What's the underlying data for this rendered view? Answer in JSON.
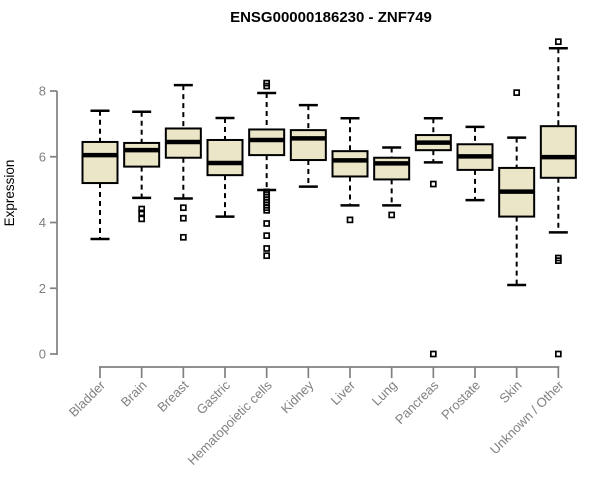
{
  "title": "ENSG00000186230 - ZNF749",
  "chart_data": {
    "type": "boxplot",
    "title": "ENSG00000186230 - ZNF749",
    "ylabel": "Expression",
    "xlabel": "",
    "ylim": [
      0,
      8
    ],
    "yticks": [
      0,
      2,
      4,
      6,
      8
    ],
    "grid": false,
    "legend": "none",
    "categories": [
      "Bladder",
      "Brain",
      "Breast",
      "Gastric",
      "Hematopoietic cells",
      "Kidney",
      "Liver",
      "Lung",
      "Pancreas",
      "Prostate",
      "Skin",
      "Unknown / Other"
    ],
    "series": [
      {
        "category": "Bladder",
        "low": 3.5,
        "q1": 5.2,
        "median": 6.05,
        "q3": 6.45,
        "high": 7.4,
        "outliers": []
      },
      {
        "category": "Brain",
        "low": 4.75,
        "q1": 5.7,
        "median": 6.2,
        "q3": 6.42,
        "high": 7.37,
        "outliers": [
          4.41,
          4.29,
          4.11
        ]
      },
      {
        "category": "Breast",
        "low": 4.73,
        "q1": 5.97,
        "median": 6.45,
        "q3": 6.86,
        "high": 8.18,
        "outliers": [
          4.45,
          4.13,
          3.55
        ]
      },
      {
        "category": "Gastric",
        "low": 4.18,
        "q1": 5.44,
        "median": 5.81,
        "q3": 6.51,
        "high": 7.18,
        "outliers": []
      },
      {
        "category": "Hematopoietic cells",
        "low": 4.99,
        "q1": 6.05,
        "median": 6.51,
        "q3": 6.83,
        "high": 7.94,
        "outliers": [
          8.24,
          8.15,
          4.93,
          4.85,
          4.77,
          4.69,
          4.61,
          4.53,
          4.45,
          4.37,
          3.97,
          3.6,
          3.21,
          2.99
        ]
      },
      {
        "category": "Kidney",
        "low": 5.09,
        "q1": 5.9,
        "median": 6.56,
        "q3": 6.81,
        "high": 7.57,
        "outliers": []
      },
      {
        "category": "Liver",
        "low": 4.52,
        "q1": 5.4,
        "median": 5.89,
        "q3": 6.17,
        "high": 7.17,
        "outliers": [
          4.08
        ]
      },
      {
        "category": "Lung",
        "low": 4.52,
        "q1": 5.31,
        "median": 5.8,
        "q3": 5.97,
        "high": 6.28,
        "outliers": [
          4.23
        ]
      },
      {
        "category": "Pancreas",
        "low": 5.83,
        "q1": 6.2,
        "median": 6.43,
        "q3": 6.66,
        "high": 7.17,
        "outliers": [
          5.17,
          0
        ]
      },
      {
        "category": "Prostate",
        "low": 4.68,
        "q1": 5.6,
        "median": 6.01,
        "q3": 6.38,
        "high": 6.91,
        "outliers": []
      },
      {
        "category": "Skin",
        "low": 2.1,
        "q1": 4.18,
        "median": 4.94,
        "q3": 5.66,
        "high": 6.58,
        "outliers": [
          7.95
        ]
      },
      {
        "category": "Unknown / Other",
        "low": 3.7,
        "q1": 5.36,
        "median": 5.99,
        "q3": 6.93,
        "high": 9.3,
        "outliers": [
          9.5,
          2.92,
          2.84,
          0
        ]
      }
    ],
    "colors": {
      "box_fill": "#ece6c8",
      "box_border": "#000000",
      "median": "#000000",
      "whisker": "#000000",
      "outlier": "#000000",
      "axis": "#808080",
      "tick_label": "#808080",
      "axis_label": "#808080",
      "title": "#000000",
      "background": "#ffffff"
    }
  }
}
